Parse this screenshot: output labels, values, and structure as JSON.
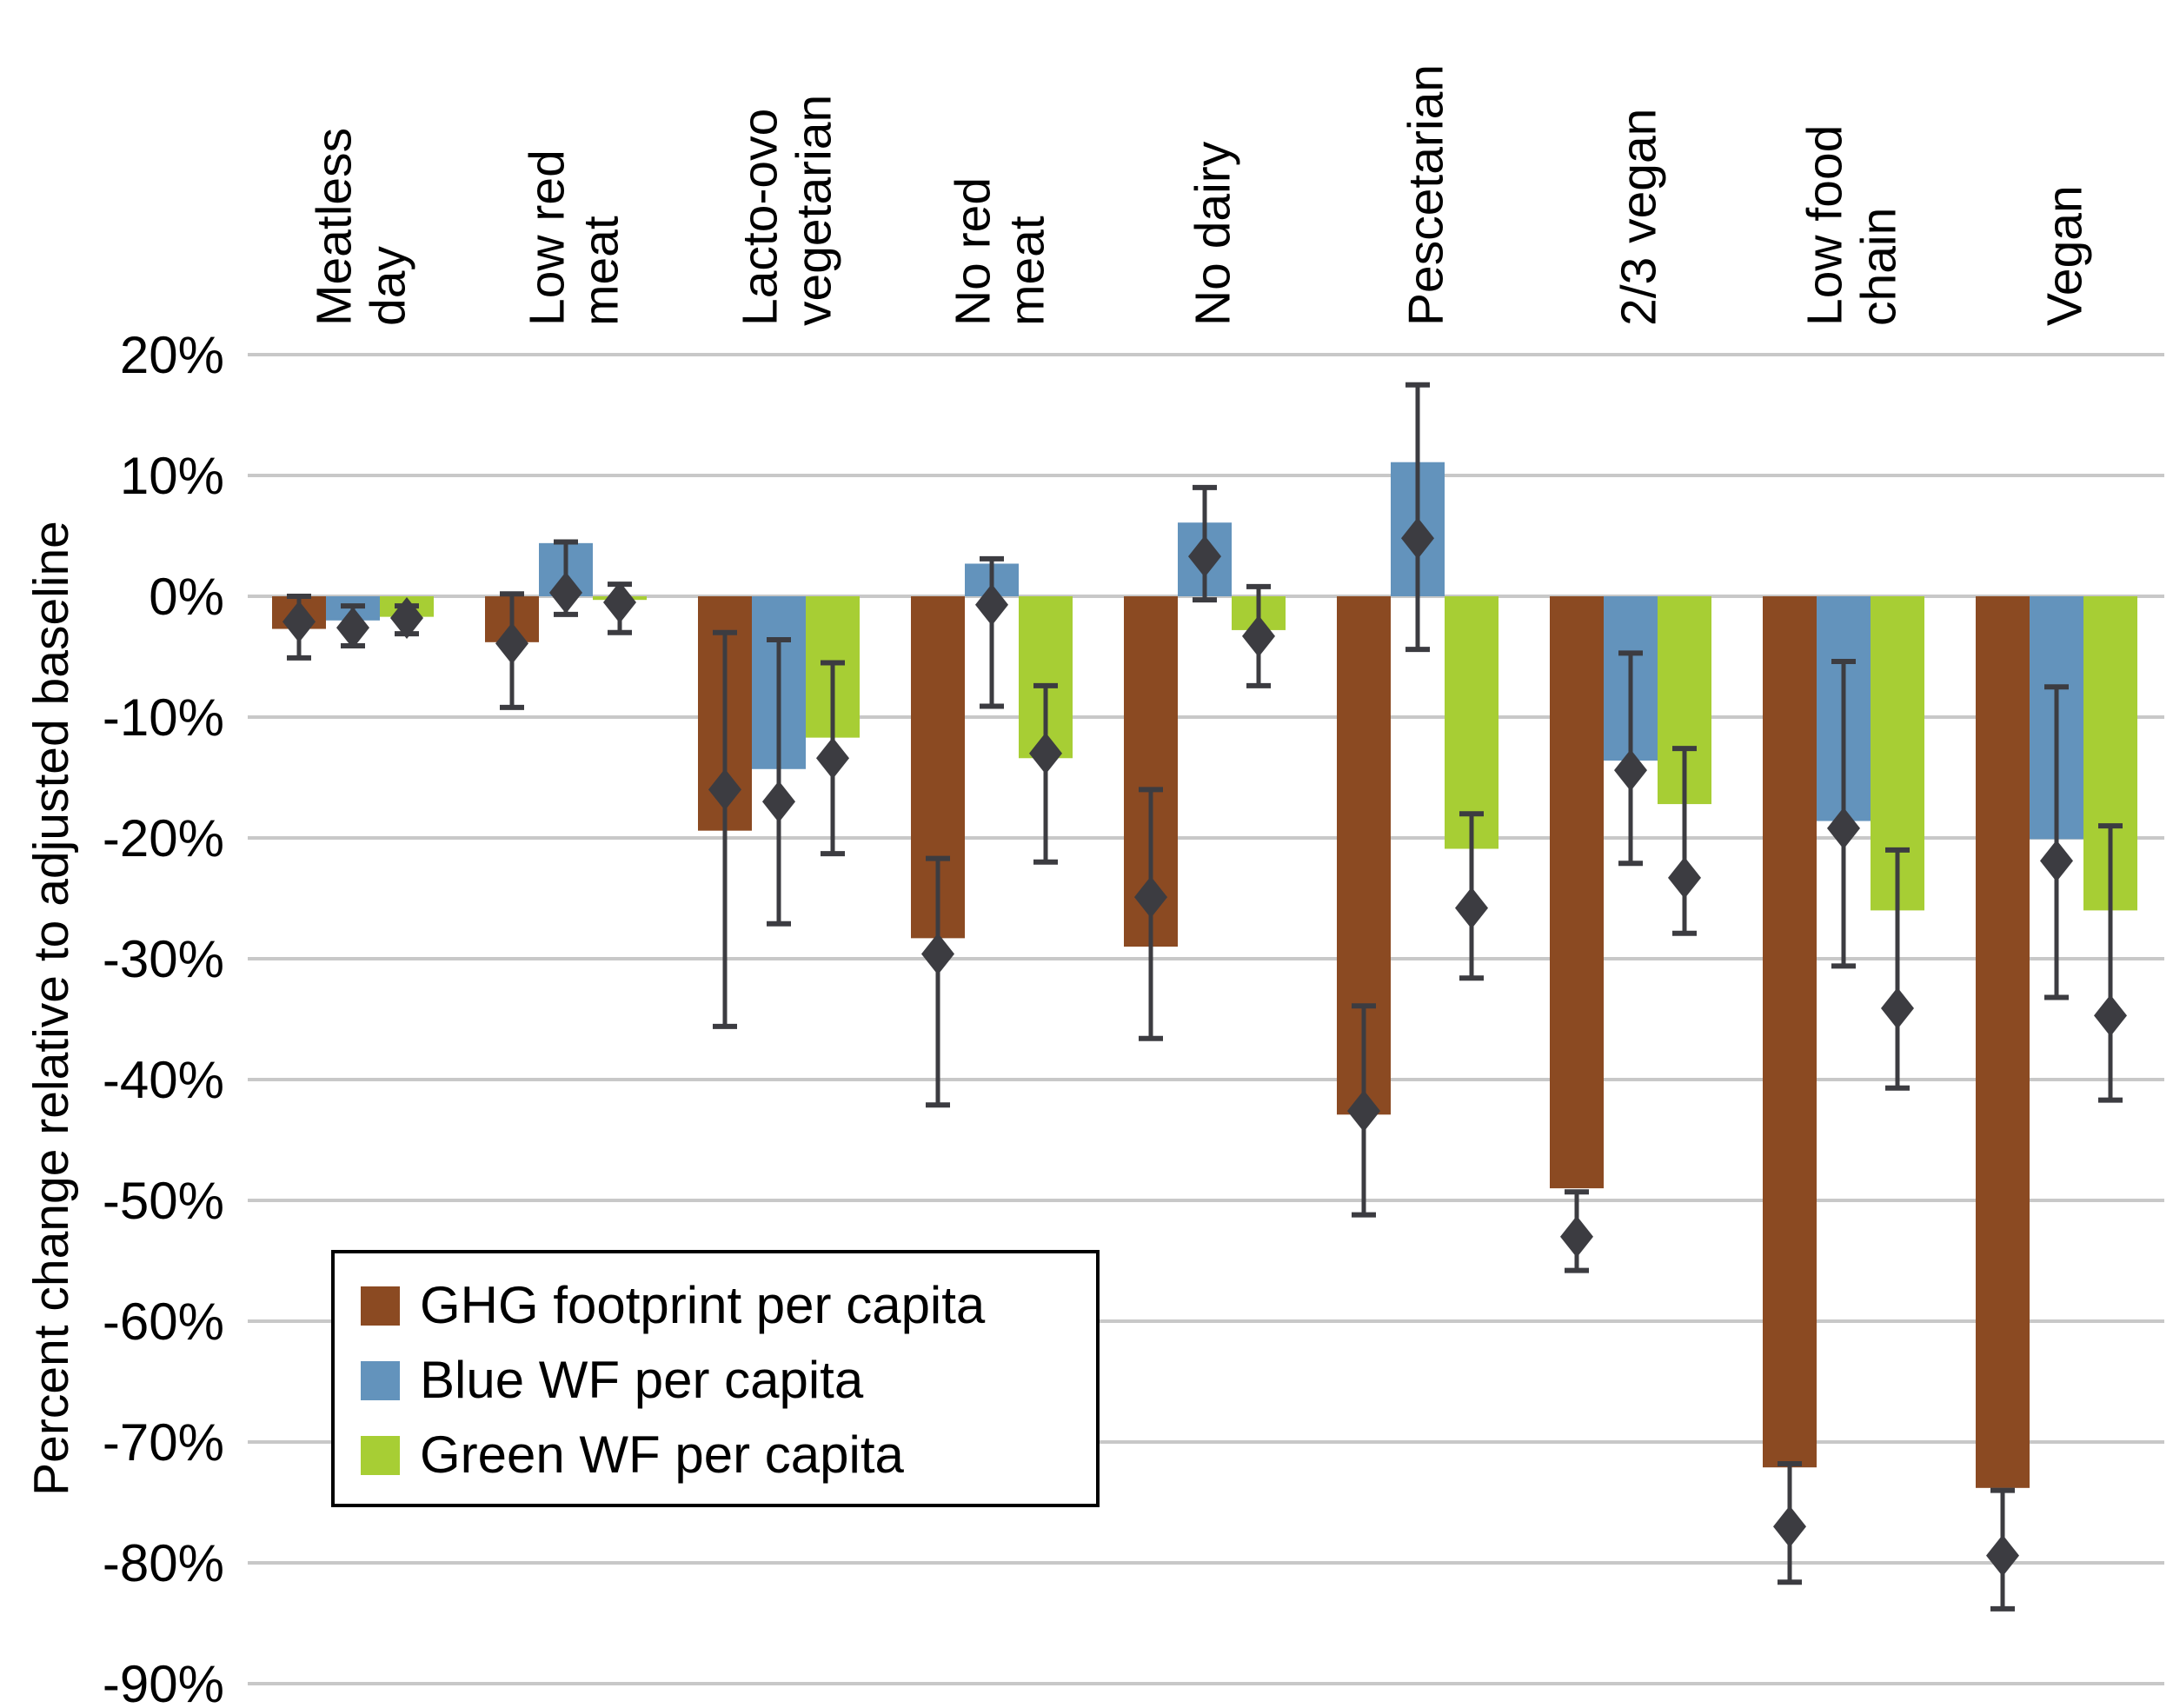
{
  "chart_data": {
    "type": "bar",
    "title": "",
    "xlabel": "",
    "ylabel": "Percent change relative to adjusted baseline",
    "ylim": [
      -90,
      20
    ],
    "yticks": [
      20,
      10,
      0,
      -10,
      -20,
      -30,
      -40,
      -50,
      -60,
      -70,
      -80,
      -90
    ],
    "ytick_labels": [
      "20%",
      "10%",
      "0%",
      "-10%",
      "-20%",
      "-30%",
      "-40%",
      "-50%",
      "-60%",
      "-70%",
      "-80%",
      "-90%"
    ],
    "grid": true,
    "category_position": "top",
    "legend_position": "bottom-left",
    "categories": [
      [
        "Meatless",
        "day"
      ],
      [
        "Low red",
        "meat"
      ],
      [
        "Lacto-ovo",
        "vegetarian"
      ],
      [
        "No red",
        "meat"
      ],
      [
        "No dairy"
      ],
      [
        "Pescetarian"
      ],
      [
        "2/3 vegan"
      ],
      [
        "Low food",
        "chain"
      ],
      [
        "Vegan"
      ]
    ],
    "series": [
      {
        "name": "GHG footprint per capita",
        "color": "#8B4A22",
        "values": [
          -2.7,
          -3.8,
          -19.4,
          -28.3,
          -29.0,
          -42.9,
          -49.0,
          -72.1,
          -73.8
        ],
        "markers": [
          -2.1,
          -3.9,
          -16.0,
          -29.6,
          -24.9,
          -42.6,
          -53.0,
          -77.0,
          -79.4
        ],
        "err_low": [
          -5.1,
          -9.2,
          -35.6,
          -42.1,
          -36.6,
          -51.2,
          -55.8,
          -81.6,
          -83.8
        ],
        "err_high": [
          0.0,
          0.2,
          -3.0,
          -21.7,
          -16.0,
          -33.9,
          -49.3,
          -71.8,
          -74.0
        ]
      },
      {
        "name": "Blue WF per capita",
        "color": "#6393BC",
        "values": [
          -2.0,
          4.4,
          -14.3,
          2.7,
          6.1,
          11.1,
          -13.6,
          -18.6,
          -20.1
        ],
        "markers": [
          -2.6,
          0.3,
          -17.0,
          -0.7,
          3.3,
          4.8,
          -14.4,
          -19.2,
          -21.9
        ],
        "err_low": [
          -4.1,
          -1.5,
          -27.1,
          -9.1,
          -0.3,
          -4.4,
          -22.1,
          -30.6,
          -33.2
        ],
        "err_high": [
          -0.8,
          4.5,
          -3.6,
          3.1,
          9.0,
          17.5,
          -4.7,
          -5.4,
          -7.5
        ]
      },
      {
        "name": "Green WF per capita",
        "color": "#A7CE34",
        "values": [
          -1.7,
          -0.3,
          -11.7,
          -13.4,
          -2.8,
          -20.9,
          -17.2,
          -26.0,
          -26.0
        ],
        "markers": [
          -1.8,
          -0.5,
          -13.4,
          -13.0,
          -3.3,
          -25.8,
          -23.3,
          -34.1,
          -34.7
        ],
        "err_low": [
          -3.1,
          -3.0,
          -21.3,
          -22.0,
          -7.4,
          -31.6,
          -27.9,
          -40.7,
          -41.7
        ],
        "err_high": [
          -0.8,
          1.0,
          -5.5,
          -7.4,
          0.8,
          -18.0,
          -12.6,
          -21.0,
          -19.0
        ]
      }
    ],
    "marker_color": "#3C3C41",
    "gridline_color": "#C8C8C8"
  }
}
